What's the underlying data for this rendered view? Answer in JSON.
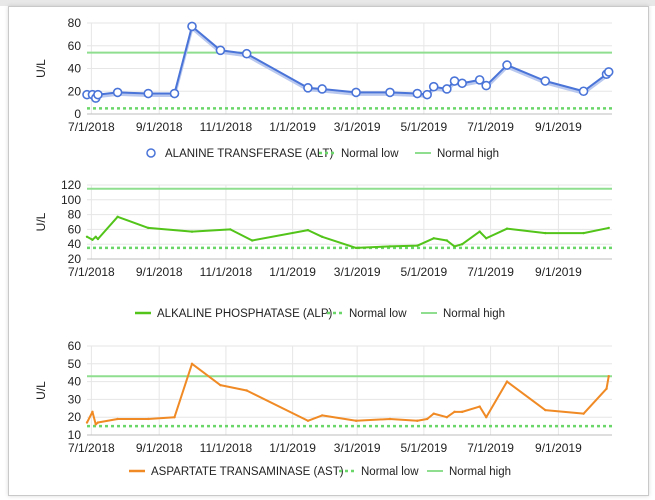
{
  "chart_data": [
    {
      "type": "line",
      "ylabel": "U/L",
      "ylim": [
        0,
        80
      ],
      "yticks": [
        0,
        20,
        40,
        60,
        80
      ],
      "xticks": [
        "7/1/2018",
        "9/1/2018",
        "11/1/2018",
        "1/1/2019",
        "3/1/2019",
        "5/1/2019",
        "7/1/2019",
        "9/1/2019"
      ],
      "grid": true,
      "legend": "bottom",
      "normal_low": 5,
      "normal_high": 54,
      "markers": true,
      "legend_labels": {
        "series": "ALANINE TRANSFERASE (ALT)",
        "low": "Normal low",
        "high": "Normal high"
      },
      "colors": {
        "series": "#4a74d8",
        "low": "#6ad66a",
        "high": "#8fde8f"
      },
      "series": [
        {
          "name": "ALANINE TRANSFERASE (ALT)",
          "x": [
            "2018-06-27",
            "2018-07-02",
            "2018-07-05",
            "2018-07-07",
            "2018-07-25",
            "2018-08-22",
            "2018-09-15",
            "2018-10-01",
            "2018-10-27",
            "2018-11-20",
            "2019-01-15",
            "2019-01-28",
            "2019-02-28",
            "2019-03-31",
            "2019-04-25",
            "2019-05-04",
            "2019-05-10",
            "2019-05-22",
            "2019-05-29",
            "2019-06-05",
            "2019-06-21",
            "2019-06-27",
            "2019-07-16",
            "2019-08-20",
            "2019-09-24",
            "2019-10-15",
            "2019-10-17"
          ],
          "y": [
            17,
            17,
            14,
            17,
            19,
            18,
            18,
            77,
            56,
            53,
            23,
            22,
            19,
            19,
            18,
            17,
            24,
            22,
            29,
            27,
            30,
            25,
            43,
            29,
            20,
            35,
            37
          ]
        }
      ]
    },
    {
      "type": "line",
      "ylabel": "U/L",
      "ylim": [
        20,
        120
      ],
      "yticks": [
        20,
        40,
        60,
        80,
        100,
        120
      ],
      "xticks": [
        "7/1/2018",
        "9/1/2018",
        "11/1/2018",
        "1/1/2019",
        "3/1/2019",
        "5/1/2019",
        "7/1/2019",
        "9/1/2019"
      ],
      "grid": true,
      "legend": "bottom",
      "normal_low": 35,
      "normal_high": 115,
      "markers": false,
      "legend_labels": {
        "series": "ALKALINE PHOSPHATASE (ALP)",
        "low": "Normal low",
        "high": "Normal high"
      },
      "colors": {
        "series": "#52c41a",
        "low": "#6ad66a",
        "high": "#8fde8f"
      },
      "series": [
        {
          "name": "ALKALINE PHOSPHATASE (ALP)",
          "x": [
            "2018-06-27",
            "2018-07-02",
            "2018-07-05",
            "2018-07-07",
            "2018-07-25",
            "2018-08-22",
            "2018-10-01",
            "2018-11-05",
            "2018-11-25",
            "2019-01-15",
            "2019-01-28",
            "2019-02-28",
            "2019-03-31",
            "2019-04-25",
            "2019-05-10",
            "2019-05-22",
            "2019-05-29",
            "2019-06-05",
            "2019-06-21",
            "2019-06-27",
            "2019-07-16",
            "2019-08-20",
            "2019-09-24",
            "2019-10-17"
          ],
          "y": [
            50,
            46,
            50,
            47,
            77,
            62,
            57,
            60,
            45,
            59,
            50,
            35,
            37,
            38,
            48,
            45,
            37,
            40,
            57,
            48,
            61,
            55,
            55,
            62
          ]
        }
      ]
    },
    {
      "type": "line",
      "ylabel": "U/L",
      "ylim": [
        10,
        60
      ],
      "yticks": [
        10,
        20,
        30,
        40,
        50,
        60
      ],
      "xticks": [
        "7/1/2018",
        "9/1/2018",
        "11/1/2018",
        "1/1/2019",
        "3/1/2019",
        "5/1/2019",
        "7/1/2019",
        "9/1/2019"
      ],
      "grid": true,
      "legend": "bottom",
      "normal_low": 15,
      "normal_high": 43,
      "markers": false,
      "legend_labels": {
        "series": "ASPARTATE TRANSAMINASE (AST)",
        "low": "Normal low",
        "high": "Normal high"
      },
      "colors": {
        "series": "#f08a24",
        "low": "#6ad66a",
        "high": "#8fde8f"
      },
      "series": [
        {
          "name": "ASPARTATE TRANSAMINASE (AST)",
          "x": [
            "2018-06-27",
            "2018-07-02",
            "2018-07-05",
            "2018-07-07",
            "2018-07-25",
            "2018-08-22",
            "2018-09-15",
            "2018-10-01",
            "2018-10-27",
            "2018-11-20",
            "2019-01-15",
            "2019-01-28",
            "2019-02-28",
            "2019-03-31",
            "2019-04-25",
            "2019-05-04",
            "2019-05-10",
            "2019-05-22",
            "2019-05-29",
            "2019-06-05",
            "2019-06-21",
            "2019-06-27",
            "2019-07-16",
            "2019-08-20",
            "2019-09-24",
            "2019-10-15",
            "2019-10-17"
          ],
          "y": [
            17,
            23,
            16,
            17,
            19,
            19,
            20,
            50,
            38,
            35,
            18,
            21,
            18,
            19,
            18,
            19,
            22,
            20,
            23,
            23,
            26,
            20,
            40,
            24,
            22,
            36,
            43
          ]
        }
      ]
    }
  ]
}
